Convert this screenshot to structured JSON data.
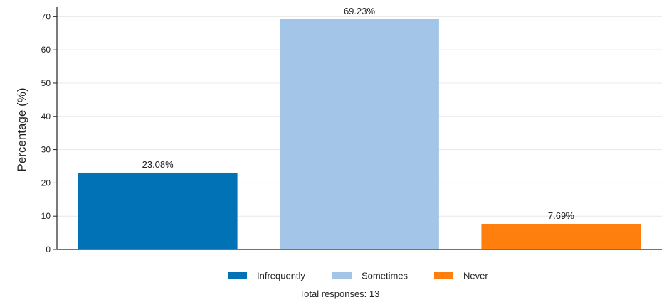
{
  "chart_data": {
    "type": "bar",
    "categories": [
      "Infrequently",
      "Sometimes",
      "Never"
    ],
    "values": [
      23.08,
      69.23,
      7.69
    ],
    "data_labels": [
      "23.08%",
      "69.23%",
      "7.69%"
    ],
    "colors": [
      "#0072b5",
      "#a3c6e8",
      "#ff7f0e"
    ],
    "ylabel": "Percentage (%)",
    "ylim": [
      0,
      72
    ],
    "yticks": [
      0,
      10,
      20,
      30,
      40,
      50,
      60,
      70
    ],
    "grid": true,
    "legend": {
      "position": "bottom",
      "entries": [
        "Infrequently",
        "Sometimes",
        "Never"
      ]
    },
    "footnote": "Total responses: 13"
  }
}
